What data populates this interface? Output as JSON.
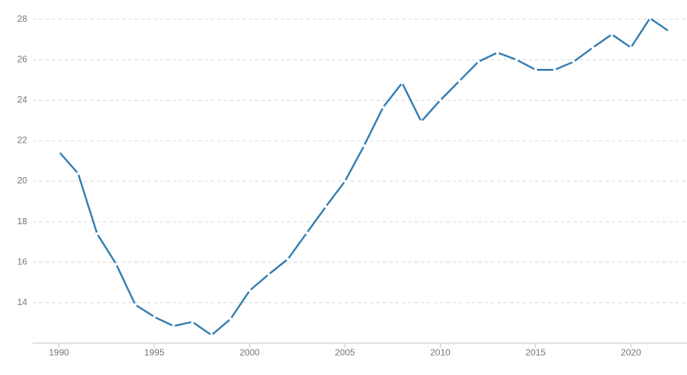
{
  "chart_data": {
    "type": "line",
    "x": [
      1990,
      1991,
      1992,
      1993,
      1994,
      1995,
      1996,
      1997,
      1998,
      1999,
      2000,
      2001,
      2002,
      2003,
      2004,
      2005,
      2006,
      2007,
      2008,
      2009,
      2010,
      2011,
      2012,
      2013,
      2014,
      2015,
      2016,
      2017,
      2018,
      2019,
      2020,
      2021,
      2022
    ],
    "series": [
      {
        "color": "#2f7bb0",
        "values": [
          21.45,
          20.38,
          17.4,
          15.9,
          13.9,
          13.3,
          12.85,
          13.05,
          12.4,
          13.2,
          14.6,
          15.4,
          16.15,
          17.45,
          18.75,
          20.0,
          21.75,
          23.65,
          24.85,
          22.95,
          24.0,
          24.95,
          25.9,
          26.35,
          26.0,
          25.5,
          25.5,
          25.9,
          26.6,
          27.25,
          26.6,
          28.05,
          27.4
        ]
      }
    ],
    "xlim": [
      1989,
      2022.8
    ],
    "ylim": [
      12,
      28.5
    ],
    "xticks": [
      1990,
      1995,
      2000,
      2005,
      2010,
      2015,
      2020
    ],
    "yticks": [
      14,
      16,
      18,
      20,
      22,
      24,
      26,
      28
    ],
    "grid": true
  }
}
